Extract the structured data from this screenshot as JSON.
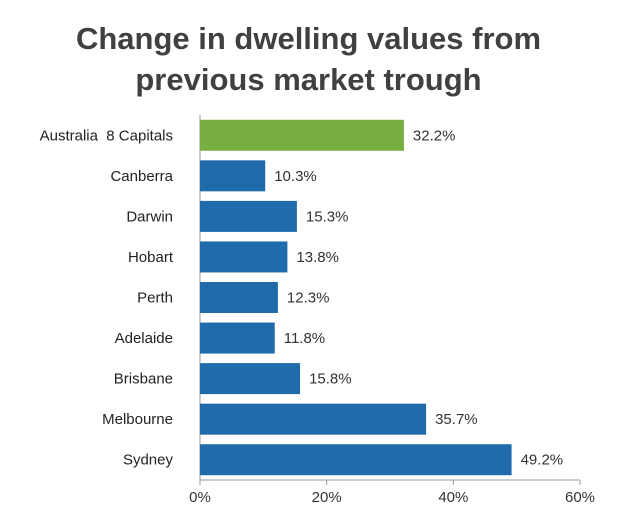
{
  "chart_data": {
    "type": "bar",
    "orientation": "horizontal",
    "title_line1": "Change in dwelling values from",
    "title_line2": "previous market trough",
    "categories": [
      "Australia  8 Capitals",
      "Canberra",
      "Darwin",
      "Hobart",
      "Perth",
      "Adelaide",
      "Brisbane",
      "Melbourne",
      "Sydney"
    ],
    "values": [
      32.2,
      10.3,
      15.3,
      13.8,
      12.3,
      11.8,
      15.8,
      35.7,
      49.2
    ],
    "value_labels": [
      "32.2%",
      "10.3%",
      "15.3%",
      "13.8%",
      "12.3%",
      "11.8%",
      "15.8%",
      "35.7%",
      "49.2%"
    ],
    "colors": [
      "#77b041",
      "#1f6bab",
      "#1f6bab",
      "#1f6bab",
      "#1f6bab",
      "#1f6bab",
      "#1f6bab",
      "#1f6bab",
      "#1f6bab"
    ],
    "xlim": [
      0,
      60
    ],
    "xticks": [
      0,
      20,
      40,
      60
    ],
    "xtick_labels": [
      "0%",
      "20%",
      "40%",
      "60%"
    ],
    "grid": false,
    "legend": "none"
  }
}
